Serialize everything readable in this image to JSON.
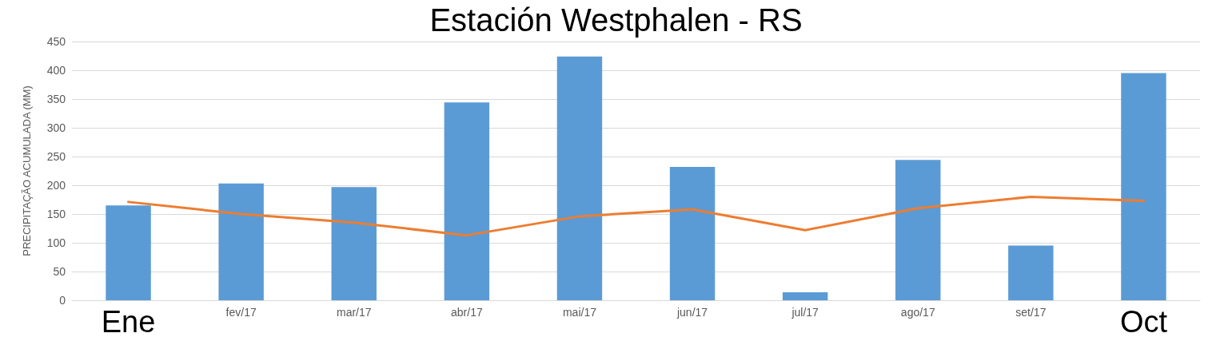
{
  "chart_data": {
    "type": "bar",
    "title": "Estación Westphalen - RS",
    "ylabel": "PRECIPITAÇÃO ACUMULADA (MM)",
    "categories": [
      "Ene",
      "fev/17",
      "mar/17",
      "abr/17",
      "mai/17",
      "jun/17",
      "jul/17",
      "ago/17",
      "set/17",
      "Oct"
    ],
    "series": [
      {
        "color": "#5b9bd5",
        "values": [
          165,
          203,
          197,
          344,
          424,
          232,
          14,
          244,
          95,
          395
        ]
      },
      {
        "type": "line",
        "color": "#ed7d31",
        "values": [
          171,
          150,
          135,
          113,
          146,
          158,
          122,
          160,
          180,
          173
        ]
      }
    ],
    "ylim": [
      0,
      450
    ],
    "yticks": [
      0,
      50,
      100,
      150,
      200,
      250,
      300,
      350,
      400,
      450
    ],
    "grid": "y",
    "marker": "none",
    "line_style": "solid"
  }
}
